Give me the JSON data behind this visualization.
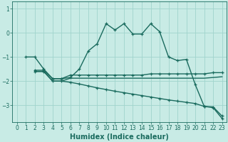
{
  "xlabel": "Humidex (Indice chaleur)",
  "ylabel": "",
  "background_color": "#c8ebe5",
  "grid_color": "#a0d4cc",
  "line_color": "#1a6b5e",
  "xlim": [
    -0.5,
    23.5
  ],
  "ylim": [
    -3.7,
    1.3
  ],
  "yticks": [
    -3,
    -2,
    -1,
    0,
    1
  ],
  "xticks": [
    0,
    1,
    2,
    3,
    4,
    5,
    6,
    7,
    8,
    9,
    10,
    11,
    12,
    13,
    14,
    15,
    16,
    17,
    18,
    19,
    20,
    21,
    22,
    23
  ],
  "lines": [
    {
      "x": [
        1,
        2,
        3,
        4,
        5,
        6,
        7,
        8,
        9,
        10,
        11,
        12,
        13,
        14,
        15,
        16,
        17,
        18,
        19,
        20,
        21,
        22,
        23
      ],
      "y": [
        -1.0,
        -1.0,
        -1.5,
        -1.9,
        -1.9,
        -1.85,
        -1.5,
        -0.75,
        -0.45,
        0.38,
        0.12,
        0.38,
        -0.05,
        -0.05,
        0.38,
        0.05,
        -1.0,
        -1.15,
        -1.1,
        -2.15,
        -3.05,
        -3.1,
        -3.55
      ],
      "marker": "+",
      "lw": 1.0
    },
    {
      "x": [
        2,
        3,
        4,
        5,
        6,
        7,
        8,
        9,
        10,
        11,
        12,
        13,
        14,
        15,
        16,
        17,
        18,
        19,
        20,
        21,
        22,
        23
      ],
      "y": [
        -1.55,
        -1.55,
        -1.9,
        -1.9,
        -1.75,
        -1.75,
        -1.75,
        -1.75,
        -1.75,
        -1.75,
        -1.75,
        -1.75,
        -1.75,
        -1.7,
        -1.7,
        -1.7,
        -1.7,
        -1.7,
        -1.7,
        -1.7,
        -1.65,
        -1.65
      ],
      "marker": "+",
      "lw": 1.0
    },
    {
      "x": [
        2,
        3,
        4,
        5,
        6,
        7,
        8,
        9,
        10,
        11,
        12,
        13,
        14,
        15,
        16,
        17,
        18,
        19,
        20,
        21,
        22,
        23
      ],
      "y": [
        -1.6,
        -1.6,
        -2.0,
        -2.0,
        -1.88,
        -1.88,
        -1.88,
        -1.88,
        -1.88,
        -1.88,
        -1.88,
        -1.88,
        -1.88,
        -1.88,
        -1.88,
        -1.88,
        -1.88,
        -1.88,
        -1.88,
        -1.88,
        -1.85,
        -1.82
      ],
      "marker": null,
      "lw": 1.0
    },
    {
      "x": [
        2,
        3,
        4,
        5,
        6,
        7,
        8,
        9,
        10,
        11,
        12,
        13,
        14,
        15,
        16,
        17,
        18,
        19,
        20,
        21,
        22,
        23
      ],
      "y": [
        -1.6,
        -1.6,
        -2.0,
        -2.0,
        -2.05,
        -2.12,
        -2.2,
        -2.28,
        -2.35,
        -2.42,
        -2.48,
        -2.54,
        -2.6,
        -2.66,
        -2.72,
        -2.78,
        -2.83,
        -2.88,
        -2.93,
        -3.05,
        -3.07,
        -3.45
      ],
      "marker": "+",
      "lw": 1.0
    }
  ],
  "title_fontsize": 7,
  "axis_fontsize": 7,
  "tick_fontsize": 5.5
}
